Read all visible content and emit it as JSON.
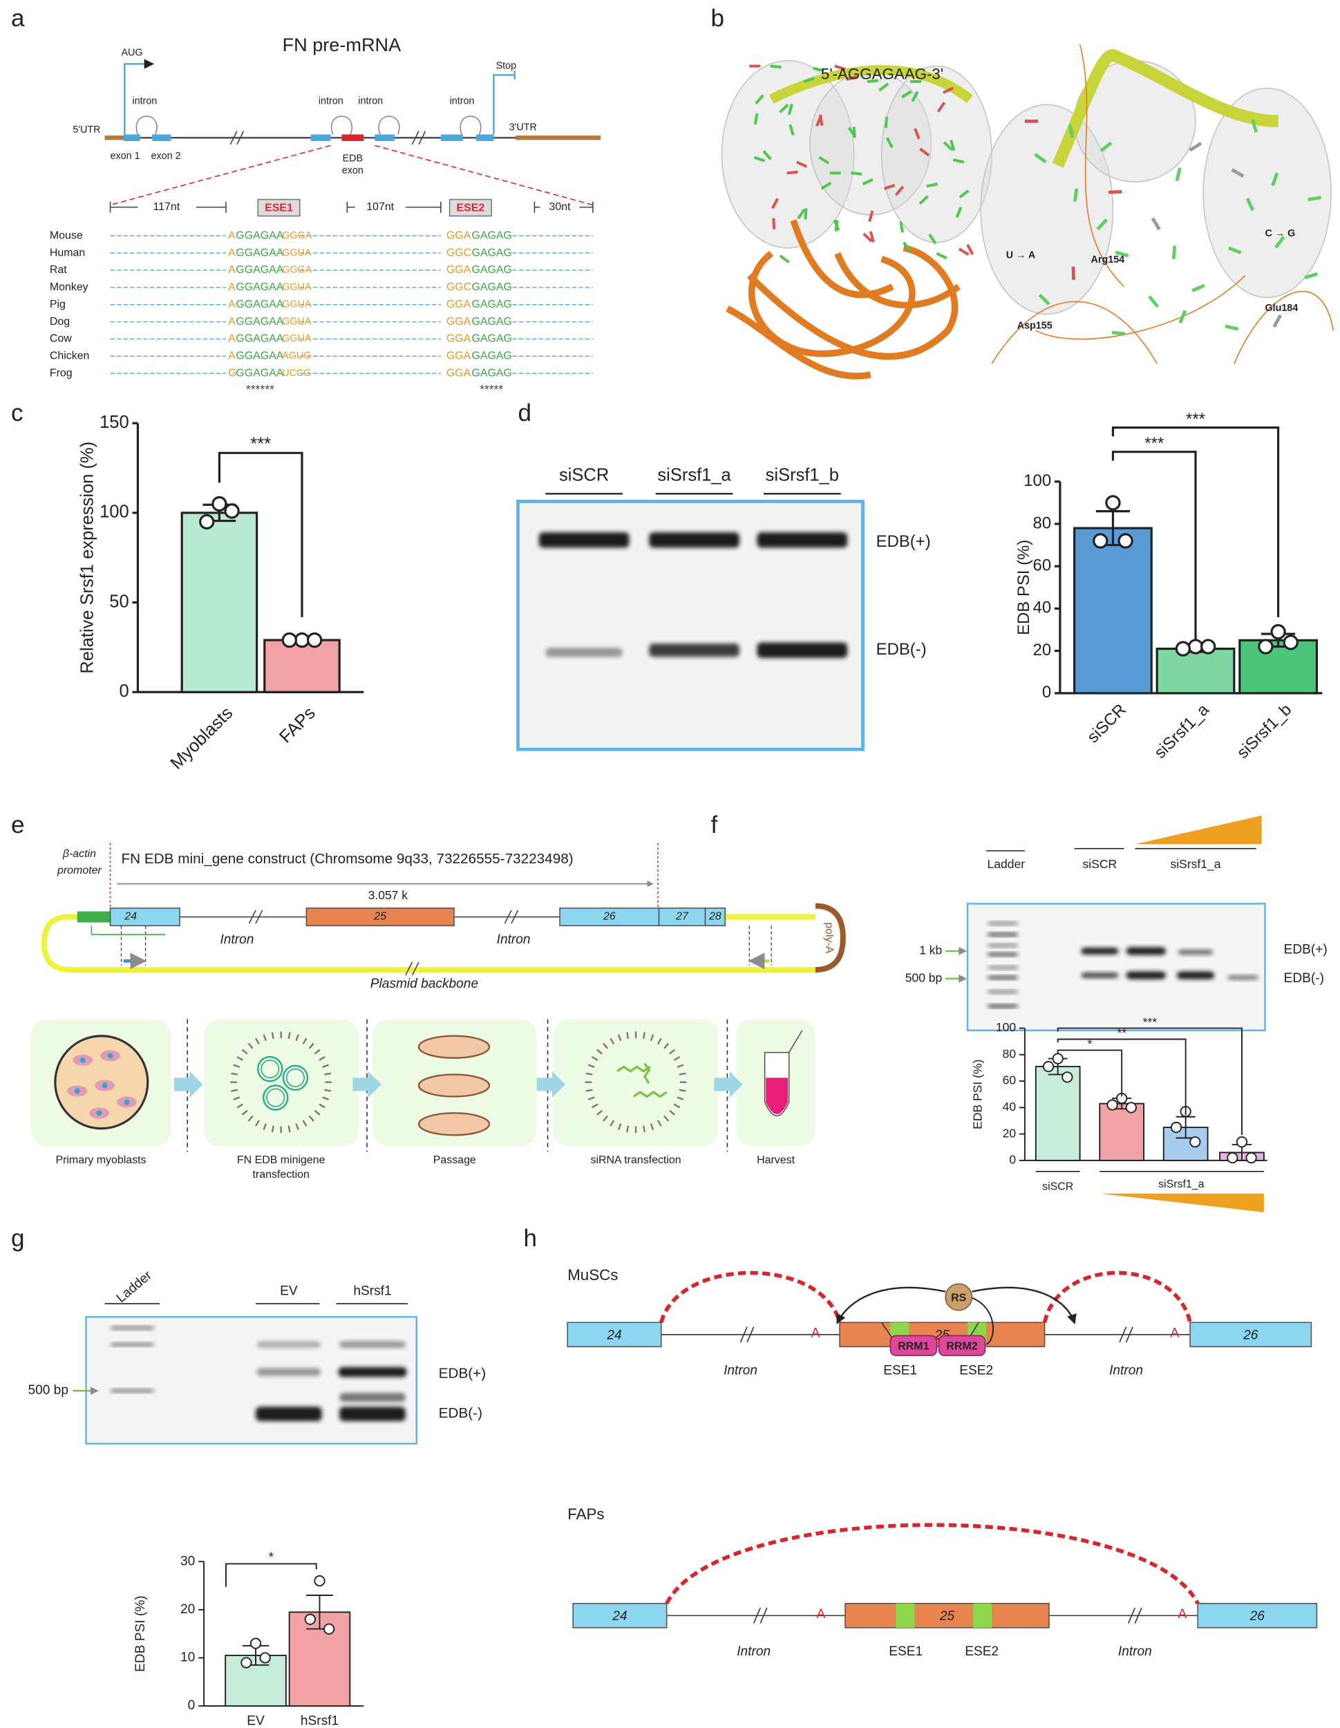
{
  "panel_labels": [
    "a",
    "b",
    "c",
    "d",
    "e",
    "f",
    "g",
    "h"
  ],
  "panel_a": {
    "title": "FN pre-mRNA",
    "aug": "AUG",
    "stop": "Stop",
    "introns": [
      "intron",
      "intron",
      "intron",
      "intron"
    ],
    "utr5": "5'UTR",
    "utr3": "3'UTR",
    "exon1": "exon 1",
    "exon2": "exon 2",
    "edb": [
      "EDB",
      "exon"
    ],
    "spans": [
      "117nt",
      "107nt",
      "30nt"
    ],
    "ese": [
      "ESE1",
      "ESE2"
    ],
    "rows": [
      {
        "species": "Mouse",
        "ese1": [
          "A",
          "GGAGAA",
          "GGGA"
        ],
        "ese2": [
          "GGA",
          "GAGAG"
        ]
      },
      {
        "species": "Human",
        "ese1": [
          "A",
          "GGAGAA",
          "GGUA"
        ],
        "ese2": [
          "GGC",
          "GAGAG"
        ]
      },
      {
        "species": "Rat",
        "ese1": [
          "A",
          "GGAGAA",
          "GGGA"
        ],
        "ese2": [
          "GGA",
          "GAGAG"
        ]
      },
      {
        "species": "Monkey",
        "ese1": [
          "A",
          "GGAGAA",
          "GGUA"
        ],
        "ese2": [
          "GGC",
          "GAGAG"
        ]
      },
      {
        "species": "Pig",
        "ese1": [
          "A",
          "GGAGAA",
          "GGUA"
        ],
        "ese2": [
          "GGA",
          "GAGAG"
        ]
      },
      {
        "species": "Dog",
        "ese1": [
          "A",
          "GGAGAA",
          "GGUA"
        ],
        "ese2": [
          "GGA",
          "GAGAG"
        ]
      },
      {
        "species": "Cow",
        "ese1": [
          "A",
          "GGAGAA",
          "GGUA"
        ],
        "ese2": [
          "GGA",
          "GAGAG"
        ]
      },
      {
        "species": "Chicken",
        "ese1": [
          "A",
          "GGAGAA",
          "AGUG"
        ],
        "ese2": [
          "GGA",
          "GAGAG"
        ]
      },
      {
        "species": "Frog",
        "ese1": [
          "G",
          "GGAGAA",
          "UCCG"
        ],
        "ese2": [
          "GGA",
          "GAGAG"
        ]
      }
    ],
    "stars": [
      "******",
      "*****"
    ]
  },
  "panel_b": {
    "sequence": "5'-AGGAGAAG-3'",
    "labels": [
      "U → A",
      "Arg154",
      "C → G",
      "Glu184",
      "Asp155"
    ]
  },
  "panel_d": {
    "lanes": [
      "siSCR",
      "siSrsf1_a",
      "siSrsf1_b"
    ],
    "bands": [
      "EDB(+)",
      "EDB(-)"
    ]
  },
  "panel_e": {
    "construct": "FN EDB mini_gene construct (Chromsome 9q33, 73226555-73223498)",
    "length": "3.057 k",
    "promoter": [
      "β-actin",
      "promoter"
    ],
    "exons": [
      "24",
      "25",
      "26",
      "27",
      "28"
    ],
    "introns": [
      "Intron",
      "Intron"
    ],
    "backbone": "Plasmid backbone",
    "polya": "poly-A",
    "steps": [
      [
        "Primary myoblasts"
      ],
      [
        "FN EDB minigene",
        "transfection"
      ],
      [
        "Passage"
      ],
      [
        "siRNA transfection"
      ],
      [
        "Harvest"
      ]
    ]
  },
  "panel_f": {
    "ladder": "Ladder",
    "lanes": [
      "siSCR",
      "siSrsf1_a"
    ],
    "sizes": [
      "1 kb",
      "500 bp"
    ],
    "bands": [
      "EDB(+)",
      "EDB(-)"
    ]
  },
  "panel_g": {
    "ladder": "Ladder",
    "lanes": [
      "EV",
      "hSrsf1"
    ],
    "size": "500 bp",
    "bands": [
      "EDB(+)",
      "EDB(-)"
    ]
  },
  "panel_h": {
    "states": [
      {
        "title": "MuSCs",
        "exons": [
          "24",
          "25",
          "26"
        ],
        "introns": [
          "Intron",
          "Intron"
        ],
        "sites": [
          "A",
          "A"
        ],
        "ese": [
          "ESE1",
          "ESE2"
        ],
        "rs": "RS",
        "rrm": [
          "RRM1",
          "RRM2"
        ]
      },
      {
        "title": "FAPs",
        "exons": [
          "24",
          "25",
          "26"
        ],
        "introns": [
          "Intron",
          "Intron"
        ],
        "sites": [
          "A",
          "A"
        ],
        "ese": [
          "ESE1",
          "ESE2"
        ]
      }
    ]
  },
  "chart_data": [
    {
      "type": "bar",
      "ylabel": "Relative Srsf1 expression (%)",
      "categories": [
        "Myoblasts",
        "FAPs"
      ],
      "values": [
        100,
        29
      ],
      "errors": [
        4.5,
        0.5
      ],
      "points": [
        [
          105,
          95,
          101
        ],
        [
          29,
          29,
          29
        ]
      ],
      "colors": [
        "#b8ead2",
        "#f1a3a6"
      ],
      "ylim": [
        0,
        150
      ],
      "yticks": [
        0,
        50,
        100,
        150
      ],
      "significance": [
        "***"
      ]
    },
    {
      "type": "bar",
      "ylabel": "EDB PSI (%)",
      "categories": [
        "siSCR",
        "siSrsf1_a",
        "siSrsf1_b"
      ],
      "values": [
        78,
        21,
        25
      ],
      "errors": [
        8,
        1.5,
        3
      ],
      "points": [
        [
          90,
          72,
          72
        ],
        [
          22,
          21,
          22
        ],
        [
          29,
          22,
          24
        ]
      ],
      "colors": [
        "#5b9bd5",
        "#7fd8a3",
        "#4cc47a"
      ],
      "ylim": [
        0,
        100
      ],
      "yticks": [
        0,
        20,
        40,
        60,
        80,
        100
      ],
      "significance": [
        "***",
        "***"
      ]
    },
    {
      "type": "bar",
      "ylabel": "EDB PSI (%)",
      "categories": [
        null,
        null,
        null,
        null
      ],
      "group_labels": [
        "siSCR",
        "siSrsf1_a"
      ],
      "values": [
        71,
        43,
        25,
        6
      ],
      "errors": [
        6,
        4,
        8,
        6
      ],
      "points": [
        [
          77,
          71,
          63
        ],
        [
          47,
          42,
          40
        ],
        [
          37,
          25,
          14
        ],
        [
          14,
          2,
          2
        ]
      ],
      "colors": [
        "#c7ecd9",
        "#f1a3a6",
        "#a9cbee",
        "#e9b3e4"
      ],
      "ylim": [
        0,
        100
      ],
      "yticks": [
        0,
        20,
        40,
        60,
        80,
        100
      ],
      "significance": [
        "*",
        "**",
        "***"
      ]
    },
    {
      "type": "bar",
      "ylabel": "EDB PSI (%)",
      "categories": [
        "EV",
        "hSrsf1"
      ],
      "values": [
        10.5,
        19.5
      ],
      "errors": [
        2,
        3.5
      ],
      "points": [
        [
          13,
          9,
          10
        ],
        [
          26,
          18,
          16
        ]
      ],
      "colors": [
        "#c7ecd9",
        "#f1a3a6"
      ],
      "ylim": [
        0,
        30
      ],
      "yticks": [
        0,
        10,
        20,
        30
      ],
      "significance": [
        "*"
      ]
    }
  ]
}
